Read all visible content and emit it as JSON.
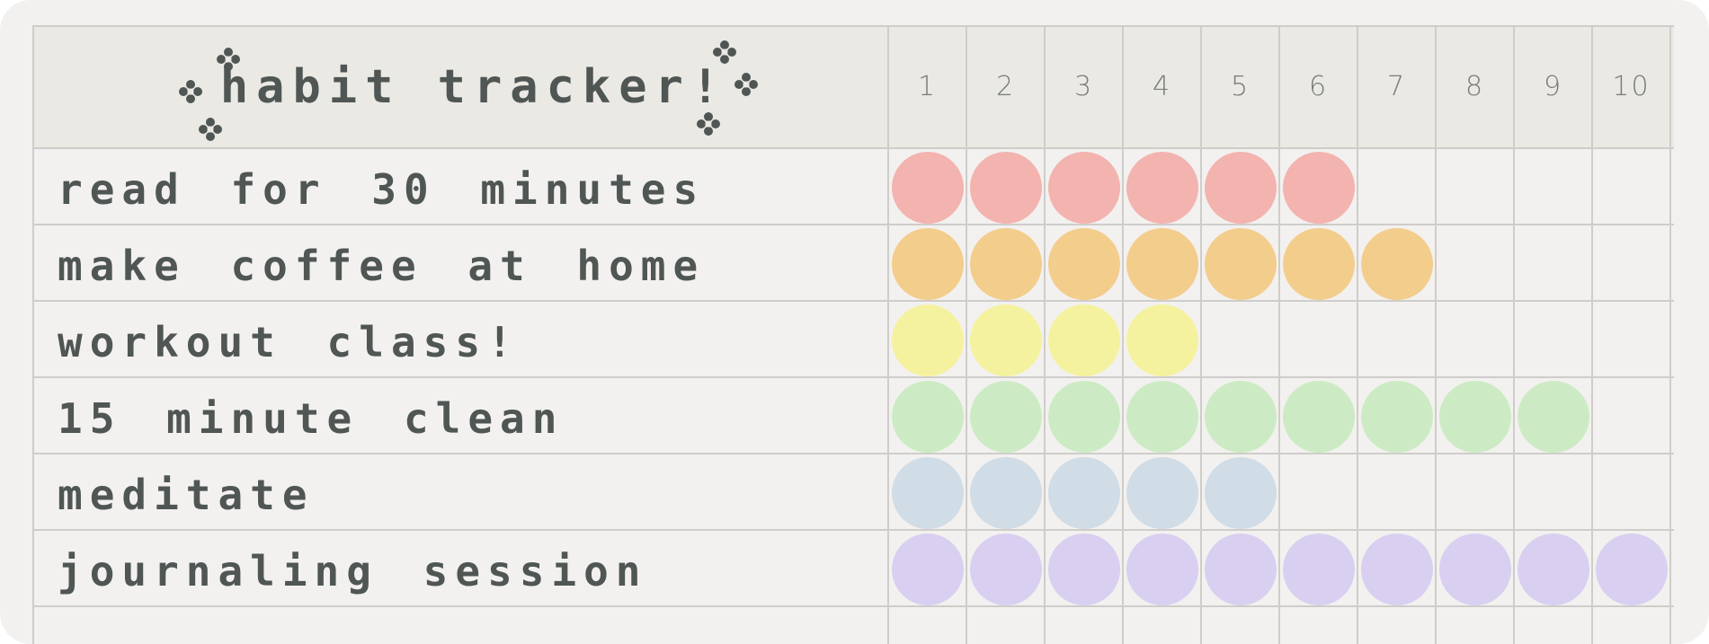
{
  "tracker": {
    "title": "habit tracker!",
    "days": [
      "1",
      "2",
      "3",
      "4",
      "5",
      "6",
      "7",
      "8",
      "9",
      "10"
    ],
    "habits": [
      {
        "label": "read for 30 minutes",
        "completed_days": 6,
        "color": "#f3b3af"
      },
      {
        "label": "make coffee at home",
        "completed_days": 7,
        "color": "#f3cd8c"
      },
      {
        "label": "workout class!",
        "completed_days": 4,
        "color": "#f4f29e"
      },
      {
        "label": "15 minute clean",
        "completed_days": 9,
        "color": "#ccebc4"
      },
      {
        "label": "meditate",
        "completed_days": 5,
        "color": "#d0dce6"
      },
      {
        "label": "journaling session",
        "completed_days": 10,
        "color": "#d9cff0"
      }
    ],
    "text_color": "#4f5654",
    "grid_color": "#cfcdca",
    "background_color": "#f3f1ef",
    "header_color": "#ebe9e4"
  }
}
